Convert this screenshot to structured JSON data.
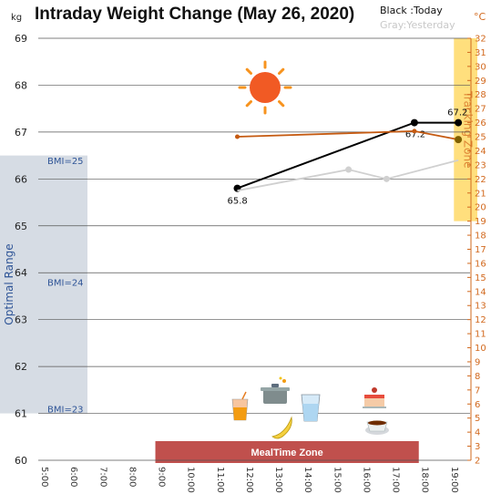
{
  "chart_data": {
    "type": "line",
    "title": "Intraday Weight Change (May 26, 2020)",
    "legend": {
      "today": "Black :Today",
      "yesterday": "Gray:Yesterday",
      "placement": "top-right"
    },
    "y_unit": "kg",
    "y2_unit": "°C",
    "ylim": [
      60,
      69
    ],
    "y_ticks": [
      "60",
      "61",
      "62",
      "63",
      "64",
      "65",
      "66",
      "67",
      "68",
      "69"
    ],
    "y2lim": [
      2,
      32
    ],
    "y2_ticks": [
      "2",
      "3",
      "4",
      "5",
      "6",
      "7",
      "8",
      "9",
      "10",
      "11",
      "12",
      "13",
      "14",
      "15",
      "16",
      "17",
      "18",
      "19",
      "20",
      "21",
      "22",
      "23",
      "24",
      "25",
      "26",
      "27",
      "28",
      "29",
      "30",
      "31",
      "32"
    ],
    "xlim": [
      5,
      20
    ],
    "x_ticks": [
      "5:00",
      "6:00",
      "7:00",
      "8:00",
      "9:00",
      "10:00",
      "11:00",
      "12:00",
      "13:00",
      "14:00",
      "15:00",
      "16:00",
      "17:00",
      "18:00",
      "19:00"
    ],
    "grid": true,
    "series": [
      {
        "name": "Today",
        "axis": "kg",
        "color": "#000000",
        "x": [
          11.8,
          17.85,
          19.35
        ],
        "y": [
          65.8,
          67.2,
          67.2
        ],
        "labels": [
          "65.8",
          "67.2",
          "67.2"
        ]
      },
      {
        "name": "Yesterday",
        "axis": "kg",
        "color": "#d0d0d0",
        "x": [
          11.8,
          15.6,
          16.9,
          19.35
        ],
        "y": [
          65.75,
          66.2,
          66.0,
          66.4
        ]
      },
      {
        "axis": "celsius",
        "color": "#c55a11",
        "x": [
          11.8,
          17.85,
          19.35
        ],
        "y": [
          25,
          25.4,
          24.8
        ]
      }
    ],
    "bands": {
      "optimal": {
        "label": "Optimal Range",
        "y": [
          61,
          66.5
        ]
      },
      "bmi_lines": [
        {
          "label": "BMI=25",
          "y": 66.4
        },
        {
          "label": "BMI=24",
          "y": 63.8
        },
        {
          "label": "BMI=23",
          "y": 61.1
        }
      ],
      "mealtime": {
        "label": "MealTime Zone",
        "x": [
          9,
          18
        ]
      },
      "tracking": {
        "label": "Tracking Zone",
        "x": [
          19.2,
          20
        ],
        "y2": [
          19,
          32
        ]
      }
    },
    "colors": {
      "grid": "#555555",
      "optimal_band": "#d6dce4",
      "tracking_band": "#ffd966",
      "meal_bar": "#c0504d",
      "today": "#000000",
      "yesterday": "#d0d0d0",
      "temperature": "#c55a11",
      "temperature_marker": "#7f6000"
    },
    "icons": [
      "sun-icon",
      "juice-icon",
      "cooking-pot-icon",
      "banana-icon",
      "water-glass-icon",
      "cake-icon",
      "coffee-icon"
    ]
  }
}
